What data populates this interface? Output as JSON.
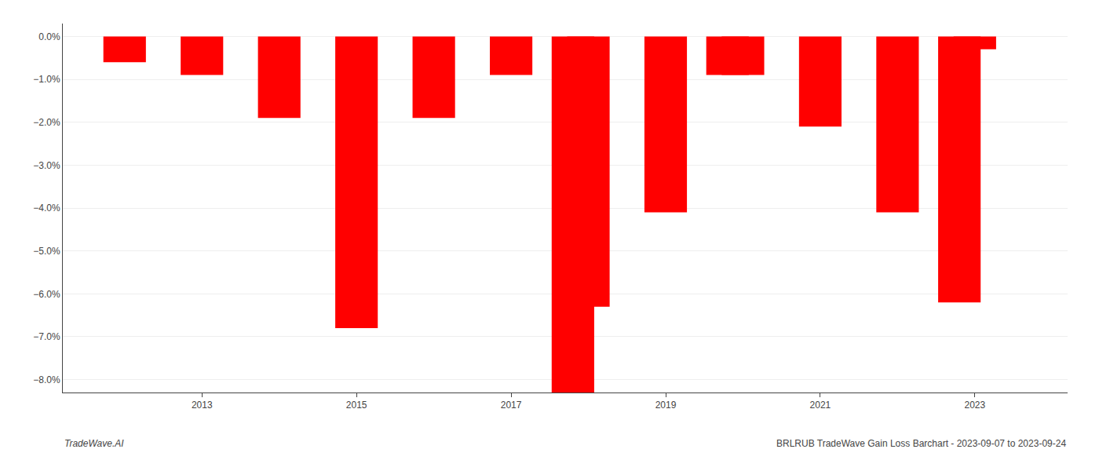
{
  "chart_data": {
    "type": "bar",
    "x": [
      2012,
      2013,
      2014,
      2015,
      2016,
      2017,
      2017.8,
      2018,
      2019,
      2019.8,
      2020,
      2021,
      2022,
      2022.8,
      2023
    ],
    "values": [
      -0.006,
      -0.009,
      -0.019,
      -0.068,
      -0.019,
      -0.009,
      -0.083,
      -0.063,
      -0.041,
      -0.009,
      -0.009,
      -0.021,
      -0.041,
      -0.062,
      -0.003
    ],
    "color": "#FF0000",
    "xlim": [
      2011.2,
      2024.2
    ],
    "xticks": [
      2013,
      2015,
      2017,
      2019,
      2021,
      2023
    ],
    "ylim": [
      -0.083,
      0.003
    ],
    "yticks": [
      {
        "value": 0.0,
        "label": "0.0%"
      },
      {
        "value": -0.01,
        "label": "−1.0%"
      },
      {
        "value": -0.02,
        "label": "−2.0%"
      },
      {
        "value": -0.03,
        "label": "−3.0%"
      },
      {
        "value": -0.04,
        "label": "−4.0%"
      },
      {
        "value": -0.05,
        "label": "−5.0%"
      },
      {
        "value": -0.06,
        "label": "−6.0%"
      },
      {
        "value": -0.07,
        "label": "−7.0%"
      },
      {
        "value": -0.08,
        "label": "−8.0%"
      }
    ],
    "grid": "y",
    "annotations": [
      "TradeWave.AI",
      "BRLRUB TradeWave Gain Loss Barchart - 2023-09-07 to 2023-09-24"
    ]
  }
}
